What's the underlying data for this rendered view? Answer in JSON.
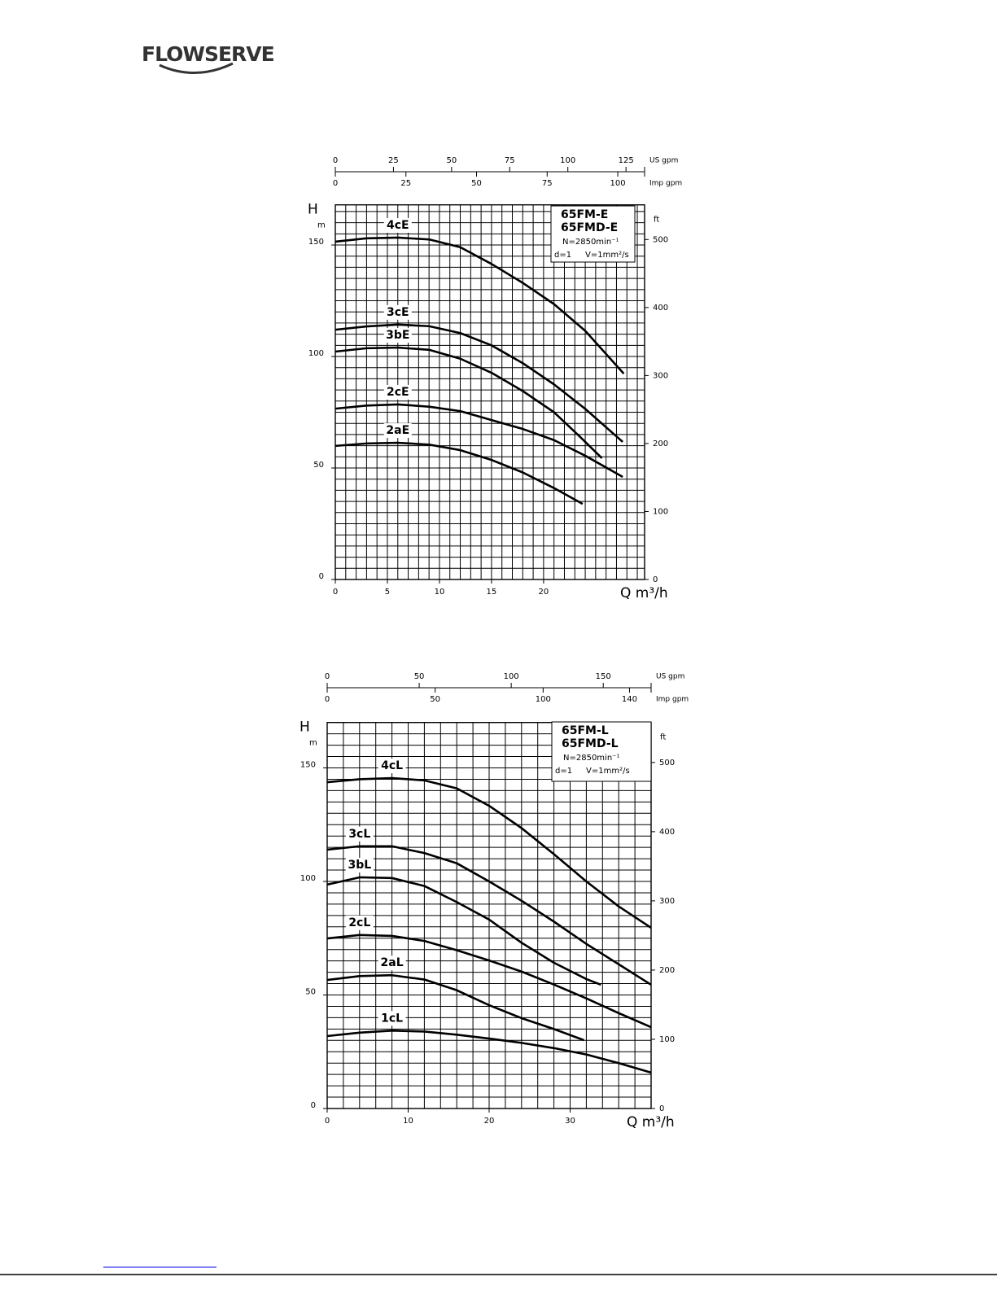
{
  "header": {
    "logo": "FLOWSERVE"
  },
  "chart_data": [
    {
      "type": "line",
      "x_label": "Q m³/h",
      "y_label": "H",
      "y_unit": "m",
      "y2_unit": "ft",
      "xlim": [
        0,
        29.7
      ],
      "xticks": [
        0,
        5,
        10,
        15,
        20
      ],
      "ylim": [
        0,
        168
      ],
      "yticks": [
        0,
        50,
        100,
        150
      ],
      "y2lim": [
        0,
        551
      ],
      "y2ticks": [
        0,
        100,
        200,
        300,
        400,
        500
      ],
      "grid": {
        "x": 1,
        "y": 5
      },
      "top_axes": [
        {
          "label": "US gpm",
          "xlim": [
            0,
            133
          ],
          "xticks": [
            0,
            25,
            50,
            75,
            100,
            125
          ]
        },
        {
          "label": "Imp gpm",
          "xlim": [
            0,
            109.5
          ],
          "xticks": [
            0,
            25,
            50,
            75,
            100
          ]
        }
      ],
      "models": [
        "65FM-E",
        "65FMD-E"
      ],
      "speed": "N=2850min⁻¹",
      "density": "d=1",
      "viscosity": "V=1mm²/s",
      "series": [
        {
          "name": "4cE",
          "color": "#000000",
          "x": [
            0,
            3,
            6,
            9,
            12,
            15,
            18,
            21,
            24,
            27.7
          ],
          "values": [
            151.5,
            153,
            153.3,
            152.5,
            149,
            141.5,
            133,
            123.5,
            111.5,
            92.3
          ]
        },
        {
          "name": "3cE",
          "color": "#000000",
          "x": [
            0,
            3,
            6,
            9,
            12,
            15,
            18,
            21,
            24,
            27.6
          ],
          "values": [
            112,
            113.5,
            114.3,
            113.6,
            110.5,
            105,
            97,
            87.5,
            76.5,
            61.7
          ]
        },
        {
          "name": "3bE",
          "color": "#000000",
          "x": [
            0,
            3,
            6,
            9,
            12,
            15,
            18,
            21,
            23.5,
            25.6
          ],
          "values": [
            102.2,
            103.7,
            104,
            103,
            99,
            92.7,
            84.5,
            75,
            64,
            54.4
          ]
        },
        {
          "name": "2cE",
          "color": "#000000",
          "x": [
            0,
            3,
            6,
            9,
            12,
            15,
            18,
            21,
            24,
            27.6
          ],
          "values": [
            76.6,
            78,
            78.5,
            77.5,
            75.5,
            71.5,
            67.5,
            62.5,
            55.5,
            46
          ]
        },
        {
          "name": "2aE",
          "color": "#000000",
          "x": [
            0,
            3,
            6,
            9,
            12,
            15,
            18,
            21,
            23.75
          ],
          "values": [
            59.9,
            61,
            61.3,
            60.5,
            58,
            53.6,
            48,
            41,
            33.9
          ]
        }
      ]
    },
    {
      "type": "line",
      "x_label": "Q m³/h",
      "y_label": "H",
      "y_unit": "m",
      "y2_unit": "ft",
      "xlim": [
        0,
        40
      ],
      "xticks": [
        0,
        10,
        20,
        30
      ],
      "ylim": [
        0,
        170
      ],
      "yticks": [
        0,
        50,
        100,
        150
      ],
      "y2lim": [
        0,
        557.8
      ],
      "y2ticks": [
        0,
        100,
        200,
        300,
        400,
        500
      ],
      "grid": {
        "x": 2,
        "y": 5
      },
      "top_axes": [
        {
          "label": "US gpm",
          "xlim": [
            0,
            176
          ],
          "xticks": [
            0,
            50,
            100,
            150
          ]
        },
        {
          "label": "Imp gpm",
          "xlim": [
            0,
            150
          ],
          "xticks": [
            0,
            50,
            100,
            140
          ]
        }
      ],
      "models": [
        "65FM-L",
        "65FMD-L"
      ],
      "speed": "N=2850min⁻¹",
      "density": "d=1",
      "viscosity": "V=1mm²/s",
      "series": [
        {
          "name": "4cL",
          "color": "#000000",
          "x": [
            0,
            4,
            8,
            12,
            16,
            20,
            24,
            28,
            32,
            36,
            40
          ],
          "values": [
            143.7,
            145,
            145.5,
            144.5,
            141,
            133.3,
            123.5,
            112,
            100,
            89,
            79.6
          ]
        },
        {
          "name": "3cL",
          "color": "#000000",
          "x": [
            0,
            4,
            8,
            12,
            16,
            20,
            24,
            28,
            32,
            36,
            40
          ],
          "values": [
            114,
            115.5,
            115.5,
            112.5,
            108,
            100,
            91.5,
            82.3,
            72.5,
            63.5,
            54.5
          ]
        },
        {
          "name": "3bL",
          "color": "#000000",
          "x": [
            0,
            4,
            8,
            12,
            16,
            20,
            24,
            28,
            32,
            33.8
          ],
          "values": [
            98.6,
            101.8,
            101.5,
            98,
            90.9,
            83.2,
            73,
            64.2,
            57,
            54.5
          ]
        },
        {
          "name": "2cL",
          "color": "#000000",
          "x": [
            0,
            4,
            8,
            12,
            16,
            20,
            24,
            28,
            32,
            36,
            40
          ],
          "values": [
            74.9,
            76.4,
            76,
            73.8,
            69.7,
            65.2,
            60.3,
            54.6,
            48.5,
            42,
            35.8
          ]
        },
        {
          "name": "2aL",
          "color": "#000000",
          "x": [
            0,
            4,
            8,
            12,
            16,
            20,
            24,
            28,
            31.7
          ],
          "values": [
            56.6,
            58.3,
            58.7,
            56.8,
            52.1,
            45.5,
            39.8,
            35,
            30.1
          ]
        },
        {
          "name": "1cL",
          "color": "#000000",
          "x": [
            0,
            4,
            8,
            12,
            16,
            20,
            24,
            28,
            32,
            36,
            40
          ],
          "values": [
            31.9,
            33.4,
            34.3,
            33.9,
            32.5,
            30.8,
            28.9,
            26.6,
            23.8,
            20,
            15.8
          ]
        }
      ]
    }
  ]
}
